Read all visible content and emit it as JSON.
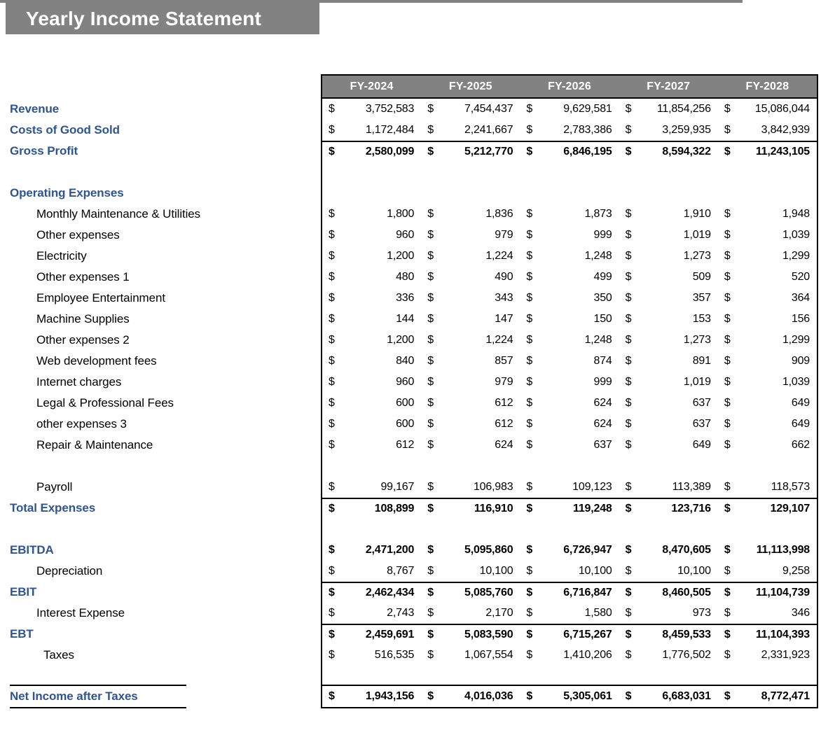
{
  "title": "Yearly Income Statement",
  "table": {
    "columns": [
      "FY-2024",
      "FY-2025",
      "FY-2026",
      "FY-2027",
      "FY-2028"
    ],
    "currency": "$",
    "rows": [
      {
        "label": "Revenue",
        "label_style": "header",
        "values": [
          "3,752,583",
          "7,454,437",
          "9,629,581",
          "11,854,256",
          "15,086,044"
        ]
      },
      {
        "label": "Costs of Good Sold",
        "label_style": "header",
        "values": [
          "1,172,484",
          "2,241,667",
          "2,783,386",
          "3,259,935",
          "3,842,939"
        ]
      },
      {
        "label": "Gross Profit",
        "label_style": "header",
        "value_style": "bold",
        "rule_above": true,
        "values": [
          "2,580,099",
          "5,212,770",
          "6,846,195",
          "8,594,322",
          "11,243,105"
        ]
      },
      {
        "type": "spacer"
      },
      {
        "label": "Operating Expenses",
        "label_style": "header"
      },
      {
        "label": "Monthly Maintenance & Utilities",
        "label_style": "item",
        "values": [
          "1,800",
          "1,836",
          "1,873",
          "1,910",
          "1,948"
        ]
      },
      {
        "label": "Other expenses",
        "label_style": "item",
        "values": [
          "960",
          "979",
          "999",
          "1,019",
          "1,039"
        ]
      },
      {
        "label": "Electricity",
        "label_style": "item",
        "values": [
          "1,200",
          "1,224",
          "1,248",
          "1,273",
          "1,299"
        ]
      },
      {
        "label": "Other expenses 1",
        "label_style": "item",
        "values": [
          "480",
          "490",
          "499",
          "509",
          "520"
        ]
      },
      {
        "label": "Employee Entertainment",
        "label_style": "item",
        "values": [
          "336",
          "343",
          "350",
          "357",
          "364"
        ]
      },
      {
        "label": "Machine Supplies",
        "label_style": "item",
        "values": [
          "144",
          "147",
          "150",
          "153",
          "156"
        ]
      },
      {
        "label": "Other expenses 2",
        "label_style": "item",
        "values": [
          "1,200",
          "1,224",
          "1,248",
          "1,273",
          "1,299"
        ]
      },
      {
        "label": "Web development fees",
        "label_style": "item",
        "values": [
          "840",
          "857",
          "874",
          "891",
          "909"
        ]
      },
      {
        "label": "Internet charges",
        "label_style": "item",
        "values": [
          "960",
          "979",
          "999",
          "1,019",
          "1,039"
        ]
      },
      {
        "label": "Legal & Professional Fees",
        "label_style": "item",
        "values": [
          "600",
          "612",
          "624",
          "637",
          "649"
        ]
      },
      {
        "label": "other expenses 3",
        "label_style": "item",
        "values": [
          "600",
          "612",
          "624",
          "637",
          "649"
        ]
      },
      {
        "label": "Repair & Maintenance",
        "label_style": "item",
        "values": [
          "612",
          "624",
          "637",
          "649",
          "662"
        ]
      },
      {
        "type": "spacer"
      },
      {
        "label": "Payroll",
        "label_style": "item",
        "values": [
          "99,167",
          "106,983",
          "109,123",
          "113,389",
          "118,573"
        ]
      },
      {
        "label": "Total Expenses",
        "label_style": "header",
        "value_style": "bold",
        "rule_above": true,
        "values": [
          "108,899",
          "116,910",
          "119,248",
          "123,716",
          "129,107"
        ]
      },
      {
        "type": "spacer"
      },
      {
        "label": "EBITDA",
        "label_style": "header",
        "value_style": "bold",
        "values": [
          "2,471,200",
          "5,095,860",
          "6,726,947",
          "8,470,605",
          "11,113,998"
        ]
      },
      {
        "label": "Depreciation",
        "label_style": "item",
        "values": [
          "8,767",
          "10,100",
          "10,100",
          "10,100",
          "9,258"
        ]
      },
      {
        "label": "EBIT",
        "label_style": "header",
        "value_style": "bold",
        "rule_above": true,
        "values": [
          "2,462,434",
          "5,085,760",
          "6,716,847",
          "8,460,505",
          "11,104,739"
        ]
      },
      {
        "label": "Interest Expense",
        "label_style": "item",
        "values": [
          "2,743",
          "2,170",
          "1,580",
          "973",
          "346"
        ]
      },
      {
        "label": "EBT",
        "label_style": "header",
        "value_style": "bold",
        "rule_above": true,
        "values": [
          "2,459,691",
          "5,083,590",
          "6,715,267",
          "8,459,533",
          "11,104,393"
        ]
      },
      {
        "label": "Taxes",
        "label_style": "item-deep",
        "values": [
          "516,535",
          "1,067,554",
          "1,410,206",
          "1,776,502",
          "2,331,923"
        ]
      },
      {
        "type": "spacer",
        "h": 27
      },
      {
        "label": "Net Income after Taxes",
        "label_style": "header",
        "value_style": "bold",
        "rule_above": true,
        "rule_below": true,
        "label_ruled": true,
        "tall": true,
        "values": [
          "1,943,156",
          "4,016,036",
          "5,305,061",
          "6,683,031",
          "8,772,471"
        ]
      }
    ]
  }
}
